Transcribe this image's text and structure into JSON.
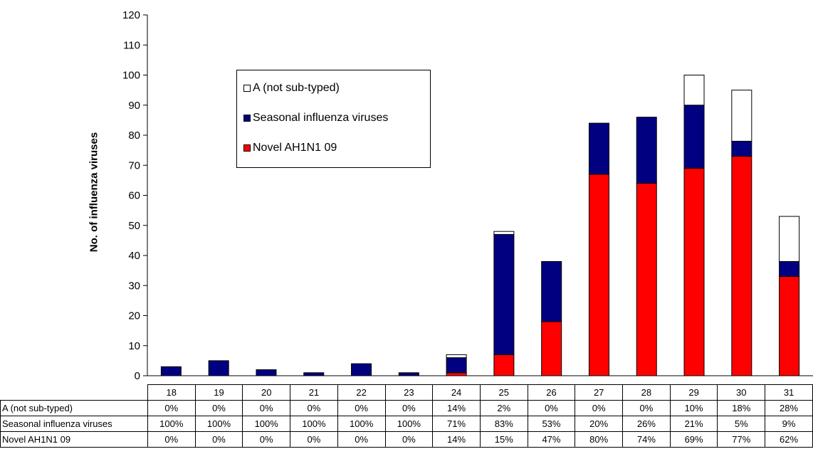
{
  "chart_data": {
    "type": "bar",
    "stacked": true,
    "title": "",
    "xlabel": "",
    "ylabel": "No. of influenza viruses",
    "ylim": [
      0,
      120
    ],
    "yticks": [
      0,
      10,
      20,
      30,
      40,
      50,
      60,
      70,
      80,
      90,
      100,
      110,
      120
    ],
    "categories": [
      "18",
      "19",
      "20",
      "21",
      "22",
      "23",
      "24",
      "25",
      "26",
      "27",
      "28",
      "29",
      "30",
      "31"
    ],
    "series": [
      {
        "name": "Novel AH1N1 09",
        "color": "#ff0000",
        "values": [
          0,
          0,
          0,
          0,
          0,
          0,
          1,
          7,
          18,
          67,
          64,
          69,
          73,
          33
        ],
        "percents": [
          "0%",
          "0%",
          "0%",
          "0%",
          "0%",
          "0%",
          "14%",
          "15%",
          "47%",
          "80%",
          "74%",
          "69%",
          "77%",
          "62%"
        ]
      },
      {
        "name": "Seasonal influenza viruses",
        "color": "#000080",
        "values": [
          3,
          5,
          2,
          1,
          4,
          1,
          5,
          40,
          20,
          17,
          22,
          21,
          5,
          5
        ],
        "percents": [
          "100%",
          "100%",
          "100%",
          "100%",
          "100%",
          "100%",
          "71%",
          "83%",
          "53%",
          "20%",
          "26%",
          "21%",
          "5%",
          "9%"
        ]
      },
      {
        "name": "A (not sub-typed)",
        "color": "#ffffff",
        "values": [
          0,
          0,
          0,
          0,
          0,
          0,
          1,
          1,
          0,
          0,
          0,
          10,
          17,
          15
        ],
        "percents": [
          "0%",
          "0%",
          "0%",
          "0%",
          "0%",
          "0%",
          "14%",
          "2%",
          "0%",
          "0%",
          "0%",
          "10%",
          "18%",
          "28%"
        ]
      }
    ],
    "legend_order": [
      "A (not sub-typed)",
      "Seasonal influenza viruses",
      "Novel AH1N1 09"
    ],
    "table_row_order": [
      "A (not sub-typed)",
      "Seasonal influenza viruses",
      "Novel AH1N1 09"
    ],
    "legend_position": "upper-left inside plot",
    "grid": false
  }
}
